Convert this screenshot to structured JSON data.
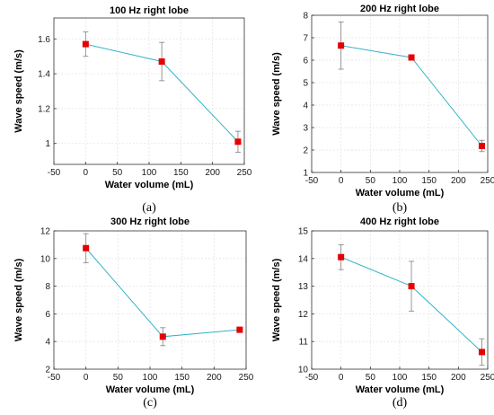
{
  "colors": {
    "line": "#33b3c8",
    "marker": "#e60000",
    "errorbar": "#8c8c8c",
    "grid": "#e4e4e4",
    "axes": "#333333"
  },
  "chart_data": [
    {
      "type": "line",
      "panel_label": "(a)",
      "title": "100 Hz right lobe",
      "xlabel": "Water volume (mL)",
      "ylabel": "Wave speed (m/s)",
      "xlim": [
        -50,
        250
      ],
      "ylim": [
        0.88,
        1.72
      ],
      "xticks": [
        -50,
        0,
        50,
        100,
        150,
        200,
        250
      ],
      "yticks": [
        1,
        1.2,
        1.4,
        1.6
      ],
      "ytick_labels": [
        "1",
        "1.2",
        "1.4",
        "1.6"
      ],
      "grid": true,
      "series": [
        {
          "x": [
            0,
            120,
            240
          ],
          "values": [
            1.57,
            1.47,
            1.01
          ],
          "err": [
            0.07,
            0.11,
            0.06
          ]
        }
      ]
    },
    {
      "type": "line",
      "panel_label": "(b)",
      "title": "200 Hz right lobe",
      "xlabel": "Water volume (mL)",
      "ylabel": "Wave speed (m/s)",
      "xlim": [
        -50,
        250
      ],
      "ylim": [
        1,
        8
      ],
      "xticks": [
        -50,
        0,
        50,
        100,
        150,
        200,
        250
      ],
      "yticks": [
        1,
        2,
        3,
        4,
        5,
        6,
        7,
        8
      ],
      "ytick_labels": [
        "1",
        "2",
        "3",
        "4",
        "5",
        "6",
        "7",
        "8"
      ],
      "grid": true,
      "series": [
        {
          "x": [
            0,
            120,
            240
          ],
          "values": [
            6.65,
            6.12,
            2.18
          ],
          "err": [
            1.05,
            0.1,
            0.25
          ]
        }
      ]
    },
    {
      "type": "line",
      "panel_label": "(c)",
      "title": "300 Hz right lobe",
      "xlabel": "Water volume (mL)",
      "ylabel": "Wave speed (m/s)",
      "xlim": [
        -50,
        250
      ],
      "ylim": [
        2,
        12
      ],
      "xticks": [
        -50,
        0,
        50,
        100,
        150,
        200,
        250
      ],
      "yticks": [
        2,
        4,
        6,
        8,
        10,
        12
      ],
      "ytick_labels": [
        "2",
        "4",
        "6",
        "8",
        "10",
        "12"
      ],
      "grid": true,
      "series": [
        {
          "x": [
            0,
            120,
            240
          ],
          "values": [
            10.75,
            4.35,
            4.85
          ],
          "err": [
            1.05,
            0.65,
            0.15
          ]
        }
      ]
    },
    {
      "type": "line",
      "panel_label": "(d)",
      "title": "400 Hz right lobe",
      "xlabel": "Water volume (mL)",
      "ylabel": "Wave speed (m/s)",
      "xlim": [
        -50,
        250
      ],
      "ylim": [
        10,
        15
      ],
      "xticks": [
        -50,
        0,
        50,
        100,
        150,
        200,
        250
      ],
      "yticks": [
        10,
        11,
        12,
        13,
        14,
        15
      ],
      "ytick_labels": [
        "10",
        "11",
        "12",
        "13",
        "14",
        "15"
      ],
      "grid": true,
      "series": [
        {
          "x": [
            0,
            120,
            240
          ],
          "values": [
            14.05,
            13.0,
            10.62
          ],
          "err": [
            0.45,
            0.9,
            0.48
          ]
        }
      ]
    }
  ]
}
